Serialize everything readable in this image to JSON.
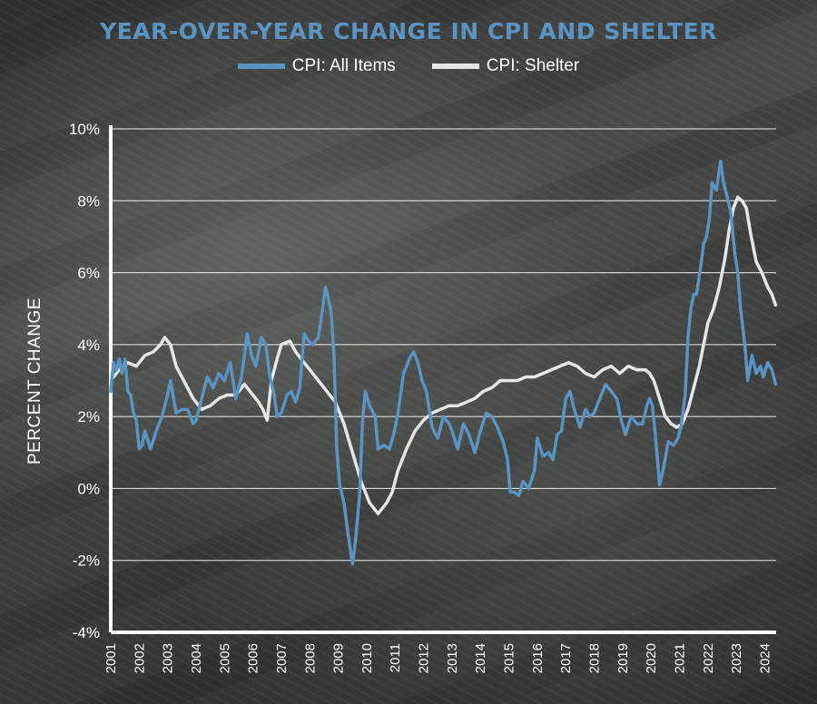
{
  "colors": {
    "cpi_all": "#5b93c2",
    "shelter": "#e6e6e6",
    "title": "#5b93c2",
    "axis": "#ffffff"
  },
  "chart_data": {
    "type": "line",
    "title": "YEAR-OVER-YEAR CHANGE IN CPI AND SHELTER",
    "ylabel": "PERCENT CHANGE",
    "xlabel": "",
    "ylim": [
      -4,
      10
    ],
    "xlim": [
      2001,
      2024.4
    ],
    "y_ticks": [
      10,
      8,
      6,
      4,
      2,
      0,
      -2,
      -4
    ],
    "y_tick_labels": [
      "10%",
      "8%",
      "6%",
      "4%",
      "2%",
      "0%",
      "-2%",
      "-4%"
    ],
    "x_tick_labels": [
      "2001",
      "2002",
      "2003",
      "2004",
      "2005",
      "2006",
      "2007",
      "2008",
      "2009",
      "2010",
      "2011",
      "2012",
      "2013",
      "2014",
      "2015",
      "2016",
      "2017",
      "2018",
      "2019",
      "2020",
      "2021",
      "2022",
      "2023",
      "2024"
    ],
    "grid": true,
    "legend": "top-center",
    "series": [
      {
        "name": "CPI: All Items",
        "color": "#5b93c2",
        "points": [
          [
            2001.0,
            2.7
          ],
          [
            2001.1,
            3.5
          ],
          [
            2001.2,
            3.3
          ],
          [
            2001.3,
            3.6
          ],
          [
            2001.4,
            3.2
          ],
          [
            2001.5,
            3.6
          ],
          [
            2001.6,
            2.7
          ],
          [
            2001.7,
            2.6
          ],
          [
            2001.8,
            2.1
          ],
          [
            2001.9,
            1.9
          ],
          [
            2002.0,
            1.1
          ],
          [
            2002.1,
            1.2
          ],
          [
            2002.2,
            1.6
          ],
          [
            2002.4,
            1.1
          ],
          [
            2002.6,
            1.6
          ],
          [
            2002.8,
            2.0
          ],
          [
            2003.0,
            2.6
          ],
          [
            2003.1,
            3.0
          ],
          [
            2003.3,
            2.1
          ],
          [
            2003.5,
            2.2
          ],
          [
            2003.7,
            2.2
          ],
          [
            2003.9,
            1.8
          ],
          [
            2004.0,
            1.9
          ],
          [
            2004.2,
            2.5
          ],
          [
            2004.4,
            3.1
          ],
          [
            2004.6,
            2.8
          ],
          [
            2004.8,
            3.2
          ],
          [
            2005.0,
            3.0
          ],
          [
            2005.2,
            3.5
          ],
          [
            2005.4,
            2.5
          ],
          [
            2005.6,
            3.1
          ],
          [
            2005.8,
            4.3
          ],
          [
            2005.95,
            3.7
          ],
          [
            2006.1,
            3.4
          ],
          [
            2006.3,
            4.2
          ],
          [
            2006.45,
            4.0
          ],
          [
            2006.6,
            3.1
          ],
          [
            2006.75,
            2.6
          ],
          [
            2006.85,
            2.0
          ],
          [
            2007.0,
            2.1
          ],
          [
            2007.2,
            2.6
          ],
          [
            2007.35,
            2.7
          ],
          [
            2007.5,
            2.4
          ],
          [
            2007.65,
            2.8
          ],
          [
            2007.8,
            4.3
          ],
          [
            2007.95,
            4.1
          ],
          [
            2008.1,
            4.0
          ],
          [
            2008.3,
            4.2
          ],
          [
            2008.45,
            5.0
          ],
          [
            2008.55,
            5.6
          ],
          [
            2008.65,
            5.3
          ],
          [
            2008.75,
            4.9
          ],
          [
            2008.85,
            3.7
          ],
          [
            2008.95,
            1.1
          ],
          [
            2009.05,
            0.1
          ],
          [
            2009.2,
            -0.4
          ],
          [
            2009.35,
            -1.3
          ],
          [
            2009.5,
            -2.1
          ],
          [
            2009.6,
            -1.5
          ],
          [
            2009.75,
            -0.2
          ],
          [
            2009.85,
            1.8
          ],
          [
            2009.95,
            2.7
          ],
          [
            2010.1,
            2.3
          ],
          [
            2010.3,
            2.0
          ],
          [
            2010.4,
            1.1
          ],
          [
            2010.6,
            1.2
          ],
          [
            2010.8,
            1.1
          ],
          [
            2010.95,
            1.5
          ],
          [
            2011.1,
            2.1
          ],
          [
            2011.3,
            3.2
          ],
          [
            2011.5,
            3.6
          ],
          [
            2011.65,
            3.8
          ],
          [
            2011.8,
            3.5
          ],
          [
            2011.95,
            3.0
          ],
          [
            2012.1,
            2.7
          ],
          [
            2012.3,
            1.7
          ],
          [
            2012.5,
            1.4
          ],
          [
            2012.7,
            2.0
          ],
          [
            2012.9,
            1.8
          ],
          [
            2013.0,
            1.6
          ],
          [
            2013.2,
            1.1
          ],
          [
            2013.4,
            1.8
          ],
          [
            2013.6,
            1.5
          ],
          [
            2013.8,
            1.0
          ],
          [
            2014.0,
            1.6
          ],
          [
            2014.2,
            2.1
          ],
          [
            2014.4,
            2.0
          ],
          [
            2014.6,
            1.7
          ],
          [
            2014.8,
            1.3
          ],
          [
            2014.95,
            0.8
          ],
          [
            2015.05,
            -0.1
          ],
          [
            2015.2,
            -0.1
          ],
          [
            2015.35,
            -0.2
          ],
          [
            2015.5,
            0.2
          ],
          [
            2015.7,
            0.0
          ],
          [
            2015.9,
            0.5
          ],
          [
            2016.0,
            1.4
          ],
          [
            2016.2,
            0.9
          ],
          [
            2016.4,
            1.0
          ],
          [
            2016.55,
            0.8
          ],
          [
            2016.7,
            1.5
          ],
          [
            2016.85,
            1.6
          ],
          [
            2017.0,
            2.5
          ],
          [
            2017.15,
            2.7
          ],
          [
            2017.3,
            2.2
          ],
          [
            2017.5,
            1.7
          ],
          [
            2017.7,
            2.2
          ],
          [
            2017.85,
            2.0
          ],
          [
            2018.0,
            2.1
          ],
          [
            2018.2,
            2.5
          ],
          [
            2018.4,
            2.9
          ],
          [
            2018.6,
            2.7
          ],
          [
            2018.8,
            2.5
          ],
          [
            2018.95,
            1.9
          ],
          [
            2019.1,
            1.5
          ],
          [
            2019.3,
            2.0
          ],
          [
            2019.5,
            1.8
          ],
          [
            2019.7,
            1.8
          ],
          [
            2019.85,
            2.3
          ],
          [
            2019.95,
            2.5
          ],
          [
            2020.05,
            2.3
          ],
          [
            2020.15,
            1.5
          ],
          [
            2020.3,
            0.1
          ],
          [
            2020.45,
            0.6
          ],
          [
            2020.6,
            1.3
          ],
          [
            2020.8,
            1.2
          ],
          [
            2020.95,
            1.4
          ],
          [
            2021.05,
            1.7
          ],
          [
            2021.2,
            2.6
          ],
          [
            2021.3,
            4.2
          ],
          [
            2021.4,
            5.0
          ],
          [
            2021.5,
            5.4
          ],
          [
            2021.6,
            5.4
          ],
          [
            2021.75,
            6.2
          ],
          [
            2021.85,
            6.8
          ],
          [
            2021.95,
            7.0
          ],
          [
            2022.05,
            7.5
          ],
          [
            2022.15,
            8.5
          ],
          [
            2022.3,
            8.3
          ],
          [
            2022.45,
            9.1
          ],
          [
            2022.55,
            8.5
          ],
          [
            2022.65,
            8.2
          ],
          [
            2022.8,
            7.7
          ],
          [
            2022.95,
            6.5
          ],
          [
            2023.05,
            6.0
          ],
          [
            2023.15,
            5.0
          ],
          [
            2023.3,
            4.0
          ],
          [
            2023.4,
            3.0
          ],
          [
            2023.55,
            3.7
          ],
          [
            2023.7,
            3.2
          ],
          [
            2023.85,
            3.4
          ],
          [
            2023.95,
            3.1
          ],
          [
            2024.1,
            3.5
          ],
          [
            2024.25,
            3.3
          ],
          [
            2024.38,
            2.9
          ]
        ]
      },
      {
        "name": "CPI: Shelter",
        "color": "#e6e6e6",
        "points": [
          [
            2001.0,
            3.0
          ],
          [
            2001.3,
            3.3
          ],
          [
            2001.6,
            3.5
          ],
          [
            2001.9,
            3.4
          ],
          [
            2002.2,
            3.7
          ],
          [
            2002.5,
            3.8
          ],
          [
            2002.75,
            4.0
          ],
          [
            2002.9,
            4.2
          ],
          [
            2003.1,
            4.0
          ],
          [
            2003.3,
            3.4
          ],
          [
            2003.5,
            3.1
          ],
          [
            2003.7,
            2.8
          ],
          [
            2003.9,
            2.5
          ],
          [
            2004.2,
            2.2
          ],
          [
            2004.5,
            2.3
          ],
          [
            2004.8,
            2.5
          ],
          [
            2005.1,
            2.6
          ],
          [
            2005.4,
            2.6
          ],
          [
            2005.7,
            2.9
          ],
          [
            2006.0,
            2.6
          ],
          [
            2006.2,
            2.4
          ],
          [
            2006.35,
            2.2
          ],
          [
            2006.5,
            1.9
          ],
          [
            2006.65,
            3.0
          ],
          [
            2006.85,
            3.6
          ],
          [
            2007.0,
            4.0
          ],
          [
            2007.3,
            4.1
          ],
          [
            2007.5,
            3.8
          ],
          [
            2007.8,
            3.5
          ],
          [
            2008.0,
            3.3
          ],
          [
            2008.3,
            3.0
          ],
          [
            2008.6,
            2.7
          ],
          [
            2008.9,
            2.4
          ],
          [
            2009.2,
            1.8
          ],
          [
            2009.5,
            1.0
          ],
          [
            2009.8,
            0.2
          ],
          [
            2010.1,
            -0.4
          ],
          [
            2010.4,
            -0.7
          ],
          [
            2010.7,
            -0.4
          ],
          [
            2010.9,
            -0.1
          ],
          [
            2011.1,
            0.5
          ],
          [
            2011.4,
            1.1
          ],
          [
            2011.7,
            1.6
          ],
          [
            2012.0,
            1.9
          ],
          [
            2012.3,
            2.1
          ],
          [
            2012.6,
            2.2
          ],
          [
            2012.9,
            2.3
          ],
          [
            2013.2,
            2.3
          ],
          [
            2013.5,
            2.4
          ],
          [
            2013.8,
            2.5
          ],
          [
            2014.1,
            2.7
          ],
          [
            2014.4,
            2.8
          ],
          [
            2014.7,
            3.0
          ],
          [
            2015.0,
            3.0
          ],
          [
            2015.3,
            3.0
          ],
          [
            2015.6,
            3.1
          ],
          [
            2015.9,
            3.1
          ],
          [
            2016.2,
            3.2
          ],
          [
            2016.5,
            3.3
          ],
          [
            2016.8,
            3.4
          ],
          [
            2017.1,
            3.5
          ],
          [
            2017.4,
            3.4
          ],
          [
            2017.7,
            3.2
          ],
          [
            2018.0,
            3.1
          ],
          [
            2018.3,
            3.3
          ],
          [
            2018.6,
            3.4
          ],
          [
            2018.9,
            3.2
          ],
          [
            2019.2,
            3.4
          ],
          [
            2019.5,
            3.3
          ],
          [
            2019.8,
            3.3
          ],
          [
            2019.95,
            3.2
          ],
          [
            2020.1,
            3.0
          ],
          [
            2020.3,
            2.5
          ],
          [
            2020.5,
            2.0
          ],
          [
            2020.7,
            1.8
          ],
          [
            2020.9,
            1.7
          ],
          [
            2021.1,
            1.8
          ],
          [
            2021.3,
            2.2
          ],
          [
            2021.5,
            2.8
          ],
          [
            2021.7,
            3.4
          ],
          [
            2021.85,
            4.0
          ],
          [
            2022.0,
            4.6
          ],
          [
            2022.2,
            5.0
          ],
          [
            2022.4,
            5.6
          ],
          [
            2022.6,
            6.4
          ],
          [
            2022.75,
            7.2
          ],
          [
            2022.9,
            7.8
          ],
          [
            2023.05,
            8.1
          ],
          [
            2023.2,
            8.0
          ],
          [
            2023.35,
            7.8
          ],
          [
            2023.5,
            7.1
          ],
          [
            2023.7,
            6.3
          ],
          [
            2023.9,
            6.0
          ],
          [
            2024.1,
            5.6
          ],
          [
            2024.25,
            5.4
          ],
          [
            2024.38,
            5.1
          ]
        ]
      }
    ]
  }
}
